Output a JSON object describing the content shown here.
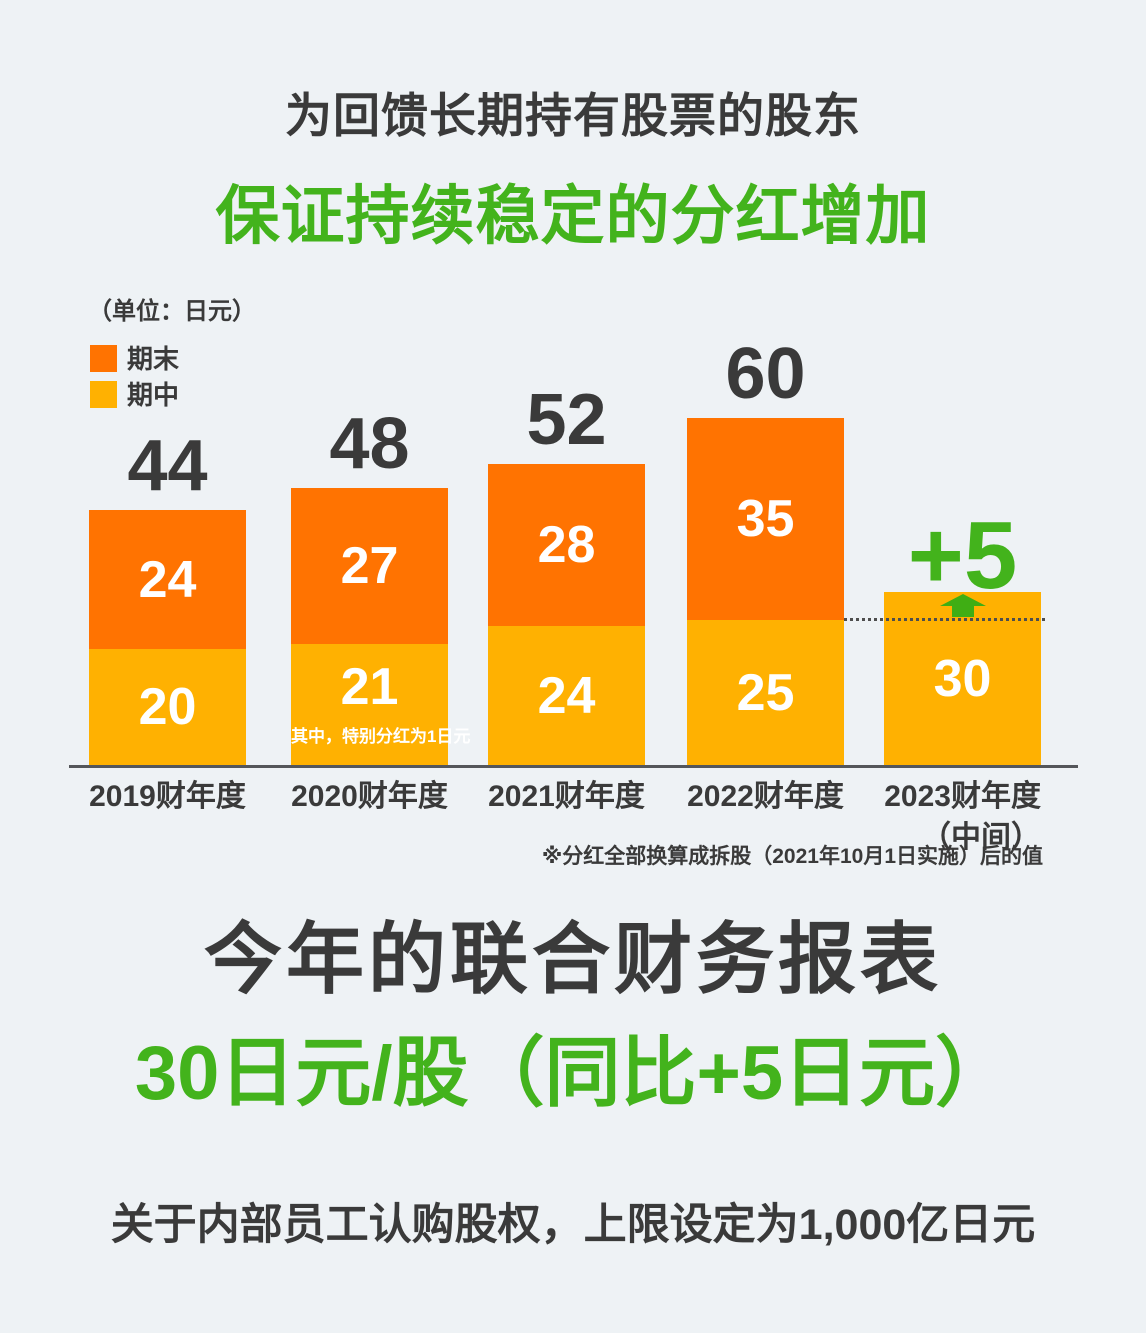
{
  "header": {
    "title": "为回馈长期持有股票的股东",
    "subtitle": "保证持续稳定的分红增加"
  },
  "chart": {
    "unit_label": "（单位：日元）",
    "legend": [
      {
        "label": "期末",
        "color": "#ff7301"
      },
      {
        "label": "期中",
        "color": "#ffb101"
      }
    ],
    "footnote": "※分红全部换算成拆股（2021年10月1日实施）后的值"
  },
  "chart_data": {
    "type": "bar",
    "stacked": true,
    "title": "保证持续稳定的分红增加",
    "unit": "日元",
    "ylabel": "（单位：日元）",
    "ylim": [
      0,
      65
    ],
    "grid": false,
    "legend_position": "top-left",
    "categories": [
      "2019财年度",
      "2020财年度",
      "2021财年度",
      "2022财年度",
      "2023财年度"
    ],
    "category_sublabels": [
      "",
      "",
      "",
      "",
      "（中间）"
    ],
    "series": [
      {
        "name": "期中",
        "color": "#ffb101",
        "values": [
          20,
          21,
          24,
          25,
          30
        ]
      },
      {
        "name": "期末",
        "color": "#ff7301",
        "values": [
          24,
          27,
          28,
          35,
          null
        ]
      }
    ],
    "totals": [
      44,
      48,
      52,
      60,
      null
    ],
    "annotations": {
      "bar_note": {
        "bar_index": 1,
        "text": "其中，特别分红为1日元"
      },
      "delta": {
        "bar_index": 4,
        "text": "+5",
        "color": "#43b31c"
      },
      "reference_line": {
        "value": 25,
        "from_bar": 3,
        "to_bar": 4,
        "style": "dotted"
      }
    }
  },
  "summary": {
    "heading": "今年的联合财务报表",
    "highlight": "30日元/股（同比+5日元）"
  },
  "footer": {
    "note": "关于内部员工认购股权，上限设定为1,000亿日元"
  },
  "colors": {
    "background": "#eef2f5",
    "text_dark": "#3a3a3a",
    "green": "#43b31c",
    "arrow_green": "#3fae14",
    "orange": "#ff7301",
    "amber": "#ffb101",
    "value_text": "#ffffff",
    "axis": "#54565a"
  }
}
